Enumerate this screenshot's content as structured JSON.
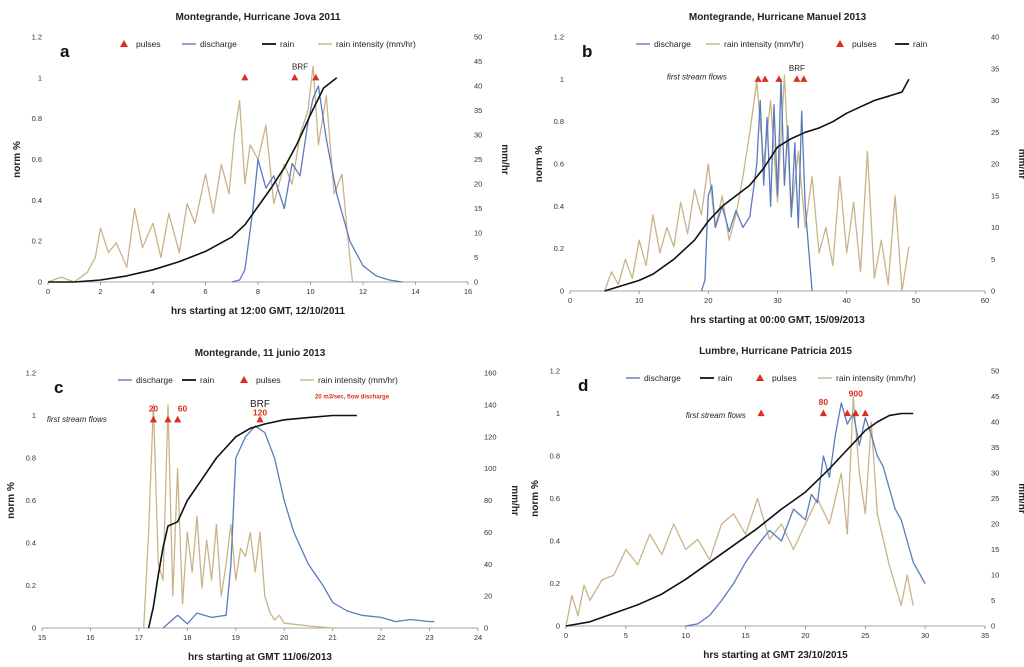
{
  "colors": {
    "discharge": "#5b7bbf",
    "rain": "#111111",
    "rain_intensity": "#c9b48a",
    "pulses": "#d9301f"
  },
  "chart_data": [
    {
      "id": "a",
      "type": "line",
      "letter": "a",
      "title": "Montegrande, Hurricane Jova 2011",
      "xlabel": "hrs starting at 12:00 GMT, 12/10/2011",
      "ylabel": "norm %",
      "y2label": "mm/hr",
      "xlim": [
        0,
        16
      ],
      "xticks": [
        "0",
        "2",
        "4",
        "6",
        "8",
        "10",
        "12",
        "14",
        "16"
      ],
      "ylim": [
        0,
        1.2
      ],
      "yticks": [
        "0",
        "0.2",
        "0.4",
        "0.6",
        "0.8",
        "1",
        "1.2"
      ],
      "y2lim": [
        0,
        50
      ],
      "y2ticks": [
        "0",
        "5",
        "10",
        "15",
        "20",
        "25",
        "30",
        "35",
        "40",
        "45",
        "50"
      ],
      "legend": [
        "pulses",
        "discharge",
        "rain",
        "rain intensity (mm/hr)"
      ],
      "series": [
        {
          "name": "rain",
          "role": "rain",
          "axis": "left",
          "x": [
            0,
            1,
            2,
            3,
            4,
            5,
            6,
            7,
            7.5,
            8,
            8.5,
            9,
            9.5,
            10,
            10.5,
            11
          ],
          "y": [
            0,
            0,
            0.01,
            0.03,
            0.06,
            0.1,
            0.15,
            0.22,
            0.28,
            0.37,
            0.46,
            0.56,
            0.68,
            0.82,
            0.95,
            1.0
          ]
        },
        {
          "name": "discharge",
          "role": "discharge",
          "axis": "left",
          "x": [
            7,
            7.3,
            7.5,
            7.8,
            8,
            8.3,
            8.6,
            9,
            9.3,
            9.6,
            9.9,
            10.1,
            10.3,
            10.6,
            11,
            11.5,
            12,
            12.5,
            13,
            13.5
          ],
          "y": [
            0,
            0.01,
            0.06,
            0.35,
            0.6,
            0.46,
            0.52,
            0.36,
            0.58,
            0.52,
            0.78,
            0.9,
            0.96,
            0.7,
            0.43,
            0.2,
            0.08,
            0.03,
            0.01,
            0
          ]
        },
        {
          "name": "rain intensity (mm/hr)",
          "role": "intensity",
          "axis": "right",
          "x": [
            0,
            0.5,
            1,
            1.5,
            1.8,
            2,
            2.3,
            2.6,
            3,
            3.3,
            3.6,
            4,
            4.3,
            4.6,
            5,
            5.3,
            5.6,
            6,
            6.3,
            6.6,
            6.9,
            7.1,
            7.3,
            7.5,
            7.7,
            8,
            8.3,
            8.6,
            9,
            9.3,
            9.6,
            9.9,
            10.1,
            10.3,
            10.6,
            10.9,
            11.2,
            11.4,
            11.6
          ],
          "y": [
            0,
            1,
            0,
            2,
            5,
            11,
            6,
            8,
            3,
            15,
            7,
            12,
            5,
            14,
            6,
            16,
            12,
            22,
            14,
            24,
            18,
            30,
            37,
            20,
            28,
            25,
            32,
            16,
            24,
            20,
            30,
            35,
            44,
            28,
            38,
            18,
            22,
            10,
            0
          ]
        }
      ],
      "pulses": [
        {
          "x": 7.5,
          "y": 1.0
        },
        {
          "x": 9.4,
          "y": 1.0
        },
        {
          "x": 10.2,
          "y": 1.0
        }
      ],
      "annotations": [
        {
          "text": "BRF",
          "x": 9.6,
          "y": 1.04,
          "style": "normal"
        }
      ]
    },
    {
      "id": "b",
      "type": "line",
      "letter": "b",
      "title": "Montegrande, Hurricane Manuel 2013",
      "xlabel": "hrs starting at 00:00 GMT, 15/09/2013",
      "ylabel": "norm %",
      "y2label": "mm/hr",
      "xlim": [
        0,
        60
      ],
      "xticks": [
        "0",
        "10",
        "20",
        "30",
        "40",
        "50",
        "60"
      ],
      "ylim": [
        0,
        1.2
      ],
      "yticks": [
        "0",
        "0.2",
        "0.4",
        "0.6",
        "0.8",
        "1",
        "1.2"
      ],
      "y2lim": [
        0,
        40
      ],
      "y2ticks": [
        "0",
        "5",
        "10",
        "15",
        "20",
        "25",
        "30",
        "35",
        "40"
      ],
      "legend": [
        "discharge",
        "rain intensity (mm/hr)",
        "pulses",
        "rain"
      ],
      "series": [
        {
          "name": "rain",
          "role": "rain",
          "axis": "left",
          "x": [
            5,
            8,
            10,
            12,
            15,
            18,
            20,
            22,
            24,
            26,
            28,
            30,
            32,
            34,
            36,
            38,
            40,
            42,
            44,
            46,
            48,
            49
          ],
          "y": [
            0,
            0.03,
            0.05,
            0.08,
            0.15,
            0.24,
            0.33,
            0.4,
            0.45,
            0.5,
            0.58,
            0.68,
            0.72,
            0.75,
            0.77,
            0.8,
            0.84,
            0.87,
            0.9,
            0.92,
            0.94,
            1.0
          ]
        },
        {
          "name": "discharge",
          "role": "discharge",
          "axis": "left",
          "x": [
            19,
            19.5,
            20,
            20.5,
            21,
            22,
            23,
            24,
            25,
            26,
            27,
            27.5,
            28,
            28.5,
            29,
            29.5,
            30,
            30.5,
            31,
            31.5,
            32,
            32.5,
            33,
            33.5,
            34,
            34.5,
            35
          ],
          "y": [
            0,
            0.05,
            0.45,
            0.5,
            0.3,
            0.4,
            0.28,
            0.38,
            0.3,
            0.35,
            0.6,
            0.9,
            0.5,
            0.82,
            0.4,
            0.88,
            0.45,
            1.0,
            0.5,
            0.78,
            0.35,
            0.7,
            0.3,
            0.85,
            0.4,
            0.2,
            0
          ]
        },
        {
          "name": "rain intensity (mm/hr)",
          "role": "intensity",
          "axis": "right",
          "x": [
            5,
            6,
            7,
            8,
            9,
            10,
            11,
            12,
            13,
            14,
            15,
            16,
            17,
            18,
            19,
            20,
            21,
            22,
            23,
            24,
            25,
            26,
            27,
            28,
            29,
            30,
            31,
            32,
            33,
            34,
            35,
            36,
            37,
            38,
            39,
            40,
            41,
            42,
            43,
            44,
            45,
            46,
            47,
            48,
            49
          ],
          "y": [
            0,
            3,
            1,
            5,
            2,
            8,
            4,
            12,
            6,
            10,
            7,
            14,
            9,
            16,
            12,
            20,
            10,
            15,
            8,
            12,
            18,
            25,
            33,
            20,
            30,
            14,
            34,
            12,
            22,
            10,
            18,
            6,
            10,
            4,
            18,
            6,
            14,
            3,
            22,
            2,
            8,
            1,
            15,
            0,
            7
          ]
        }
      ],
      "pulses": [
        {
          "x": 27.2,
          "y": 1.0
        },
        {
          "x": 28.2,
          "y": 1.0
        },
        {
          "x": 30.2,
          "y": 1.0
        },
        {
          "x": 32.8,
          "y": 1.0
        },
        {
          "x": 33.8,
          "y": 1.0
        }
      ],
      "annotations": [
        {
          "text": "first stream flows",
          "x": 14,
          "y": 1.0,
          "style": "italic"
        },
        {
          "text": "BRF",
          "x": 32.8,
          "y": 1.04,
          "style": "normal"
        }
      ]
    },
    {
      "id": "c",
      "type": "line",
      "letter": "c",
      "title": "Montegrande, 11 junio 2013",
      "xlabel": "hrs starting at GMT 11/06/2013",
      "ylabel": "norm %",
      "y2label": "mm/hr",
      "xlim": [
        15,
        24
      ],
      "xticks": [
        "15",
        "16",
        "17",
        "18",
        "19",
        "20",
        "21",
        "22",
        "23",
        "24"
      ],
      "ylim": [
        0,
        1.2
      ],
      "yticks": [
        "0",
        "0.2",
        "0.4",
        "0.6",
        "0.8",
        "1",
        "1.2"
      ],
      "y2lim": [
        0,
        160
      ],
      "y2ticks": [
        "0",
        "20",
        "40",
        "60",
        "80",
        "100",
        "120",
        "140",
        "160"
      ],
      "legend": [
        "discharge",
        "rain",
        "pulses",
        "rain intensity (mm/hr)"
      ],
      "series": [
        {
          "name": "rain",
          "role": "rain",
          "axis": "left",
          "x": [
            17.2,
            17.3,
            17.4,
            17.5,
            17.6,
            17.8,
            18,
            18.3,
            18.6,
            19,
            19.3,
            19.6,
            20,
            20.5,
            21,
            21.5
          ],
          "y": [
            0,
            0.1,
            0.25,
            0.38,
            0.48,
            0.5,
            0.6,
            0.7,
            0.8,
            0.9,
            0.94,
            0.96,
            0.98,
            0.99,
            1.0,
            1.0
          ]
        },
        {
          "name": "discharge",
          "role": "discharge",
          "axis": "left",
          "x": [
            17.5,
            17.8,
            18,
            18.2,
            18.5,
            18.8,
            18.9,
            19,
            19.2,
            19.4,
            19.6,
            19.8,
            20,
            20.2,
            20.5,
            20.8,
            21,
            21.3,
            21.6,
            22,
            22.3,
            22.6,
            23,
            23.1
          ],
          "y": [
            0,
            0.06,
            0.02,
            0.07,
            0.05,
            0.06,
            0.3,
            0.8,
            0.9,
            0.95,
            0.92,
            0.8,
            0.6,
            0.45,
            0.3,
            0.2,
            0.12,
            0.08,
            0.06,
            0.05,
            0.03,
            0.04,
            0.03,
            0.03
          ]
        },
        {
          "name": "rain intensity (mm/hr)",
          "role": "intensity",
          "axis": "right",
          "x": [
            17.1,
            17.2,
            17.3,
            17.4,
            17.5,
            17.6,
            17.7,
            17.8,
            17.9,
            18,
            18.1,
            18.2,
            18.3,
            18.4,
            18.5,
            18.6,
            18.7,
            18.8,
            18.9,
            19,
            19.1,
            19.2,
            19.3,
            19.4,
            19.5,
            19.6,
            19.7,
            19.8,
            19.9,
            20,
            20.3,
            20.6,
            21
          ],
          "y": [
            0,
            60,
            140,
            40,
            30,
            140,
            20,
            100,
            15,
            60,
            35,
            70,
            25,
            55,
            30,
            65,
            20,
            40,
            65,
            30,
            50,
            45,
            60,
            35,
            60,
            20,
            10,
            5,
            8,
            3,
            2,
            1,
            0
          ]
        }
      ],
      "pulses": [
        {
          "x": 17.3,
          "y": 0.98
        },
        {
          "x": 17.6,
          "y": 0.98
        },
        {
          "x": 17.8,
          "y": 0.98
        },
        {
          "x": 19.5,
          "y": 0.98
        }
      ],
      "annotations": [
        {
          "text": "first stream flows",
          "x": 15.1,
          "y": 0.97,
          "style": "italic"
        },
        {
          "text": "20",
          "x": 17.3,
          "y": 1.02,
          "style": "red"
        },
        {
          "text": "60",
          "x": 17.9,
          "y": 1.02,
          "style": "red"
        },
        {
          "text": "BRF",
          "x": 19.5,
          "y": 1.04,
          "style": "normalbig"
        },
        {
          "text": "120",
          "x": 19.5,
          "y": 1.0,
          "style": "red"
        },
        {
          "text": "20 m3/sec, flow discharge",
          "x": 21.4,
          "y": 1.08,
          "style": "smallred"
        }
      ]
    },
    {
      "id": "d",
      "type": "line",
      "letter": "d",
      "title": "Lumbre, Hurricane Patricia 2015",
      "xlabel": "hrs starting at GMT 23/10/2015",
      "ylabel": "norm %",
      "y2label": "mm/hr",
      "xlim": [
        0,
        35
      ],
      "xticks": [
        "0",
        "5",
        "10",
        "15",
        "20",
        "25",
        "30",
        "35"
      ],
      "ylim": [
        0,
        1.2
      ],
      "yticks": [
        "0",
        "0.2",
        "0.4",
        "0.6",
        "0.8",
        "1",
        "1.2"
      ],
      "y2lim": [
        0,
        50
      ],
      "y2ticks": [
        "0",
        "5",
        "10",
        "15",
        "20",
        "25",
        "30",
        "35",
        "40",
        "45",
        "50"
      ],
      "legend": [
        "discharge",
        "rain",
        "pulses",
        "rain intensity (mm/hr)"
      ],
      "series": [
        {
          "name": "rain",
          "role": "rain",
          "axis": "left",
          "x": [
            0,
            2,
            4,
            6,
            8,
            10,
            12,
            14,
            16,
            18,
            20,
            22,
            23,
            24,
            25,
            26,
            27,
            28,
            29
          ],
          "y": [
            0,
            0.02,
            0.06,
            0.1,
            0.15,
            0.22,
            0.3,
            0.38,
            0.46,
            0.55,
            0.63,
            0.74,
            0.8,
            0.86,
            0.92,
            0.96,
            0.99,
            1.0,
            1.0
          ]
        },
        {
          "name": "discharge",
          "role": "discharge",
          "axis": "left",
          "x": [
            10,
            11,
            12,
            13,
            14,
            15,
            16,
            17,
            18,
            19,
            20,
            20.5,
            21,
            21.5,
            22,
            22.5,
            23,
            23.5,
            24,
            24.5,
            25,
            25.5,
            26,
            26.5,
            27,
            27.5,
            28,
            28.5,
            29,
            29.5,
            30
          ],
          "y": [
            0,
            0.01,
            0.05,
            0.12,
            0.2,
            0.3,
            0.38,
            0.45,
            0.4,
            0.55,
            0.5,
            0.62,
            0.58,
            0.8,
            0.7,
            0.9,
            1.05,
            0.95,
            1.0,
            0.85,
            0.98,
            0.9,
            0.8,
            0.75,
            0.65,
            0.55,
            0.5,
            0.4,
            0.3,
            0.25,
            0.2
          ]
        },
        {
          "name": "rain intensity (mm/hr)",
          "role": "intensity",
          "axis": "right",
          "x": [
            0,
            0.5,
            1,
            1.5,
            2,
            3,
            4,
            5,
            6,
            7,
            8,
            9,
            10,
            11,
            12,
            13,
            14,
            15,
            16,
            17,
            18,
            19,
            20,
            21,
            22,
            23,
            23.5,
            24,
            24.5,
            25,
            25.5,
            26,
            27,
            28,
            28.5,
            29
          ],
          "y": [
            0,
            6,
            2,
            8,
            5,
            9,
            10,
            15,
            12,
            18,
            14,
            20,
            15,
            17,
            13,
            20,
            22,
            18,
            25,
            17,
            20,
            15,
            20,
            25,
            20,
            30,
            18,
            45,
            30,
            22,
            40,
            22,
            12,
            4,
            10,
            4
          ]
        }
      ],
      "pulses": [
        {
          "x": 16.3,
          "y": 1.0
        },
        {
          "x": 21.5,
          "y": 1.0
        },
        {
          "x": 23.5,
          "y": 1.0
        },
        {
          "x": 24.2,
          "y": 1.0
        },
        {
          "x": 25,
          "y": 1.0
        }
      ],
      "annotations": [
        {
          "text": "first stream flows",
          "x": 10,
          "y": 0.98,
          "style": "italic"
        },
        {
          "text": "80",
          "x": 21.5,
          "y": 1.04,
          "style": "red"
        },
        {
          "text": "900",
          "x": 24.2,
          "y": 1.08,
          "style": "red"
        }
      ]
    }
  ]
}
